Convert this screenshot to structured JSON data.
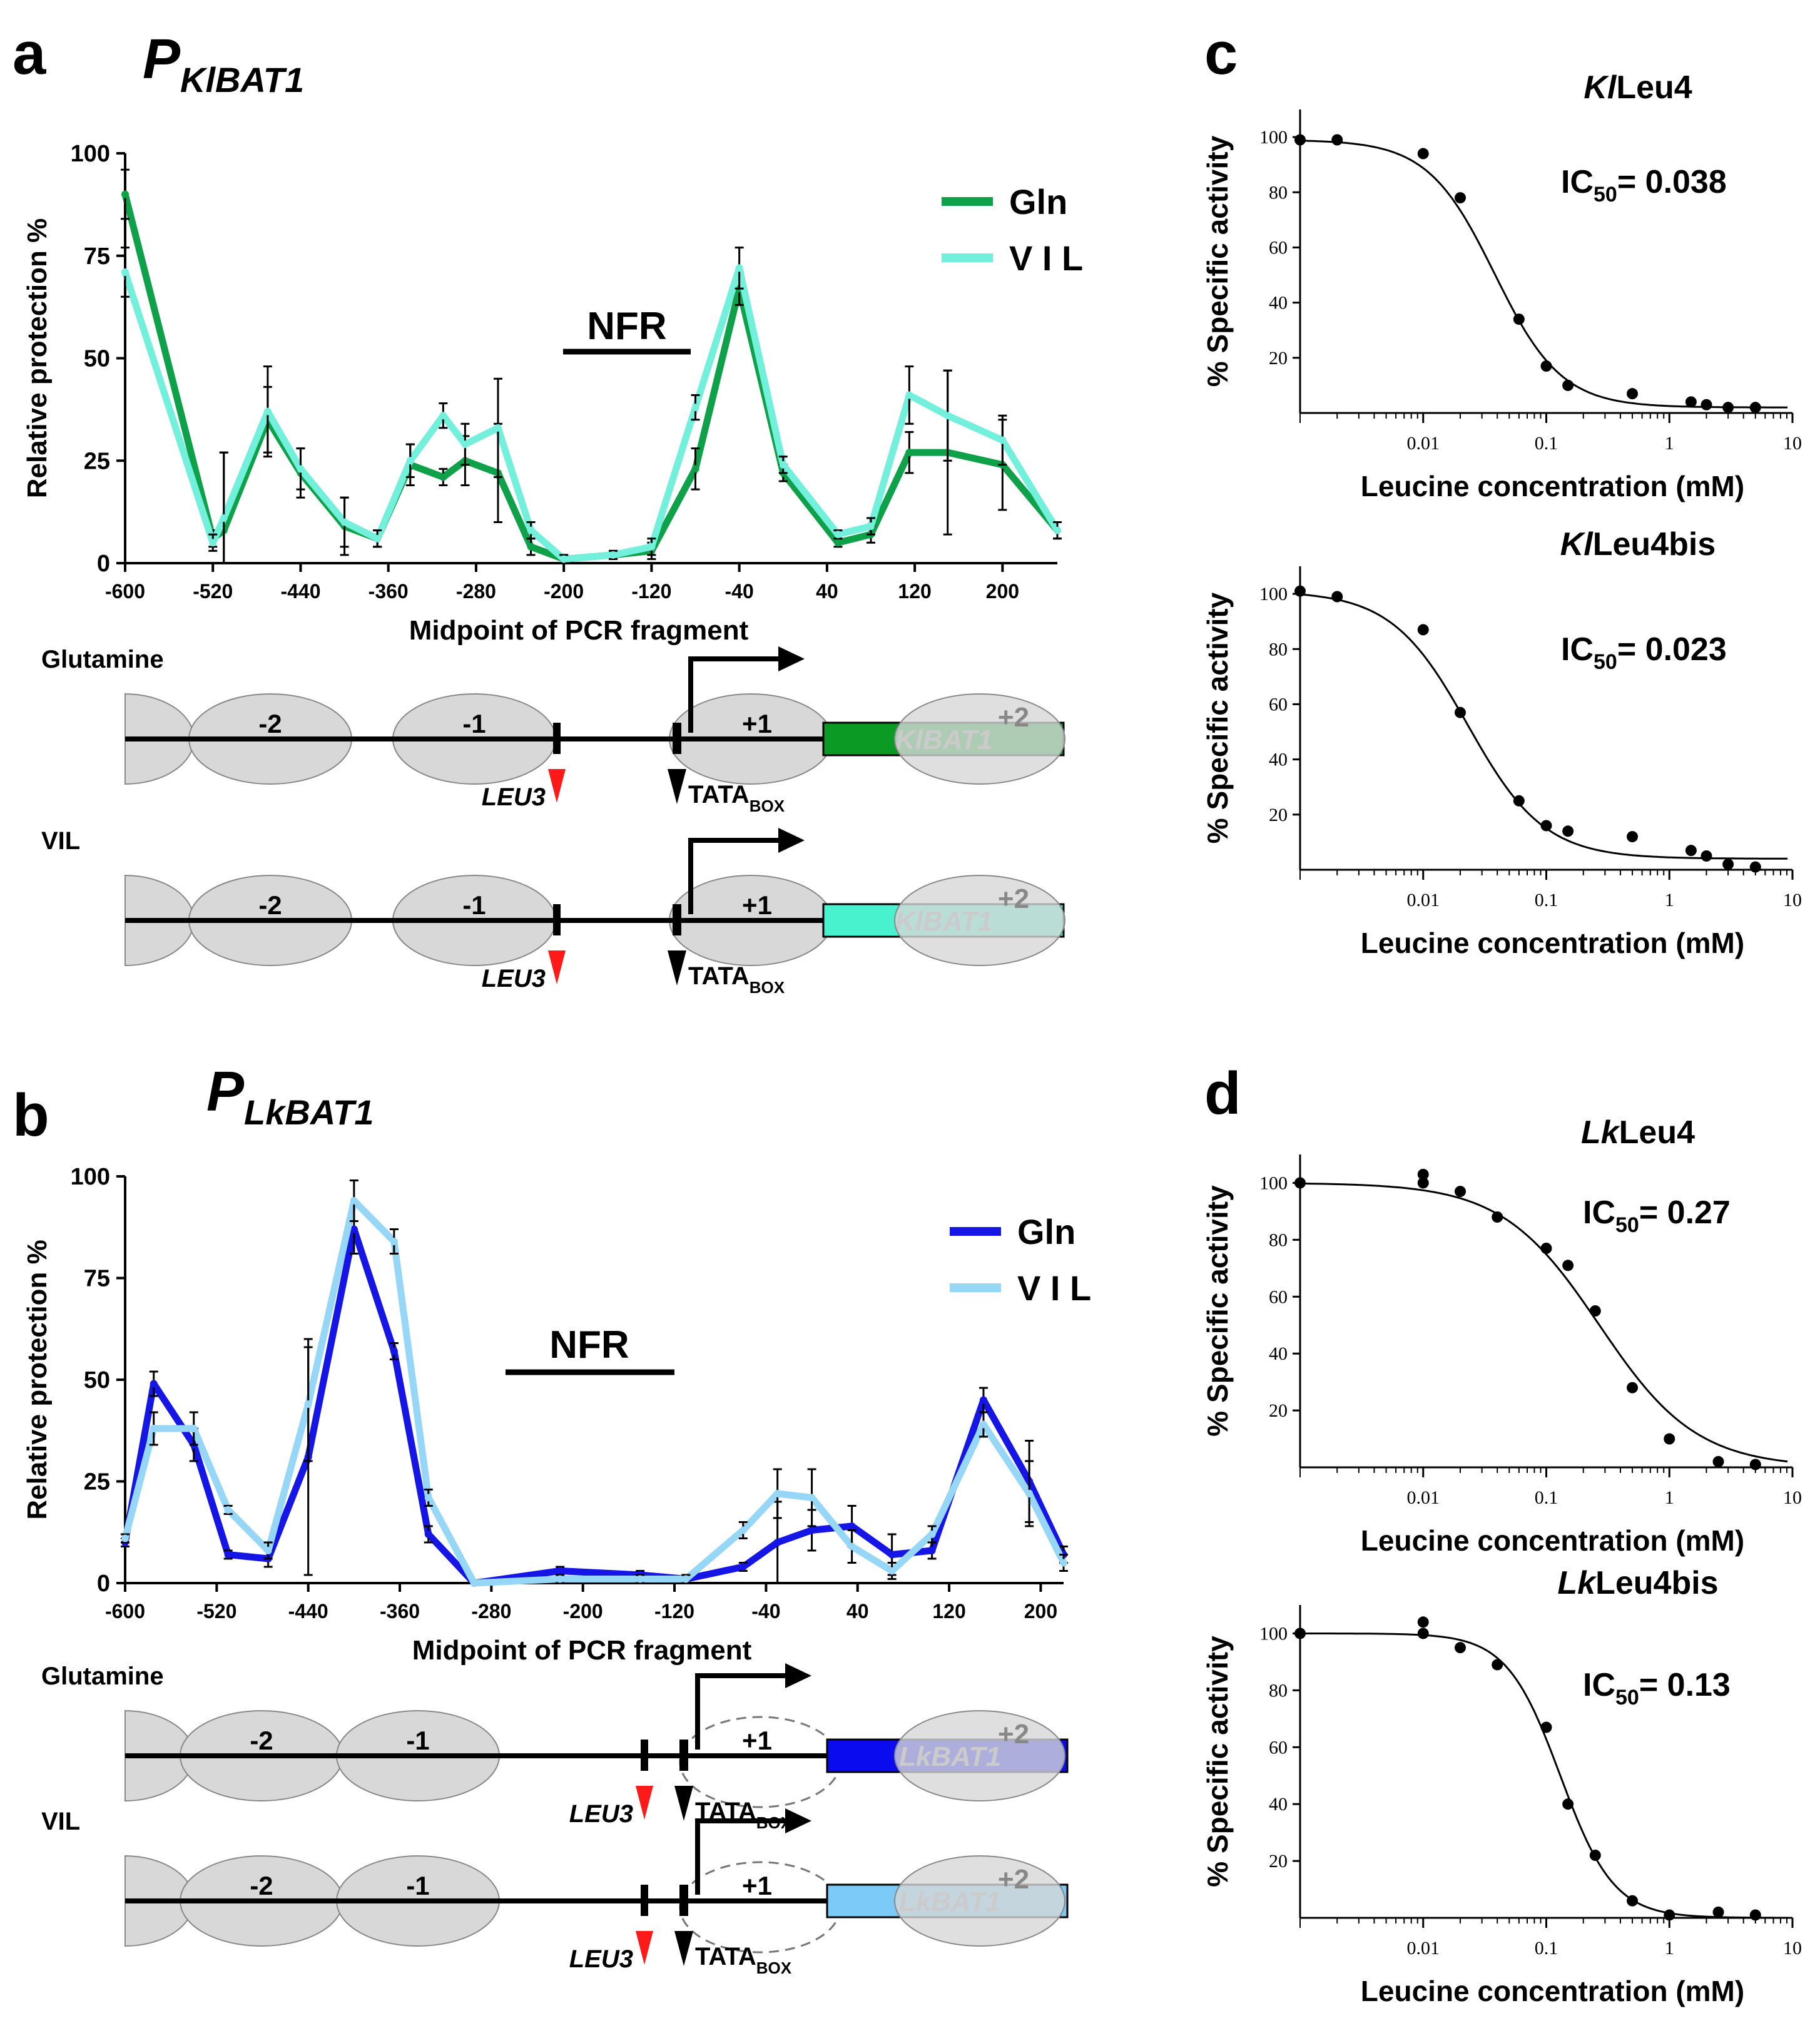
{
  "panel_letters": {
    "a": "a",
    "b": "b",
    "c": "c",
    "d": "d"
  },
  "colors": {
    "kl_gln": "#0ea14a",
    "kl_vil": "#72f0dc",
    "lk_gln": "#1515e6",
    "lk_vil": "#96d6f7",
    "kl_gene_gln": "#0b9a23",
    "kl_gene_vil": "#49f2cf",
    "lk_gene_gln": "#0b0bef",
    "lk_gene_vil": "#7ccaf7",
    "leu3_marker": "#ff1a1a",
    "nucleosome": "#d8d8d8"
  },
  "panel_a": {
    "title_main": "P",
    "title_sub": "KlBAT1",
    "nfr_label": "NFR",
    "diagram": {
      "rows": [
        {
          "condition": "Glutamine",
          "gene_label": "KlBAT1",
          "color_key": "kl_gene_gln"
        },
        {
          "condition": "VIL",
          "gene_label": "KlBAT1",
          "color_key": "kl_gene_vil"
        }
      ],
      "nucleosomes": [
        "-2",
        "-1",
        "+1",
        "+2"
      ],
      "leu3": "LEU3",
      "tata": "TATA",
      "tata_sub": "BOX"
    }
  },
  "panel_b": {
    "title_main": "P",
    "title_sub": "LkBAT1",
    "nfr_label": "NFR",
    "diagram": {
      "rows": [
        {
          "condition": "Glutamine",
          "gene_label": "LkBAT1",
          "color_key": "lk_gene_gln"
        },
        {
          "condition": "VIL",
          "gene_label": "LkBAT1",
          "color_key": "lk_gene_vil"
        }
      ],
      "nucleosomes": [
        "-2",
        "-1",
        "+1",
        "+2"
      ],
      "leu3": "LEU3",
      "tata": "TATA",
      "tata_sub": "BOX"
    }
  },
  "chart_data": [
    {
      "id": "a",
      "type": "line",
      "title": "",
      "xlabel": "Midpoint of PCR fragment",
      "ylabel": "Relative protection %",
      "xlim": [
        -600,
        250
      ],
      "ylim": [
        0,
        100
      ],
      "xticks": [
        -600,
        -520,
        -440,
        -360,
        -280,
        -200,
        -120,
        -40,
        40,
        120,
        200
      ],
      "yticks": [
        0,
        25,
        50,
        75,
        100
      ],
      "legend_position": "top-right",
      "grid": false,
      "series": [
        {
          "name": "Gln",
          "color_key": "kl_gln",
          "x": [
            -600,
            -520,
            -510,
            -470,
            -440,
            -400,
            -370,
            -340,
            -310,
            -290,
            -260,
            -230,
            -200,
            -155,
            -120,
            -80,
            -40,
            0,
            50,
            80,
            115,
            150,
            200,
            250
          ],
          "y": [
            90,
            6,
            8,
            35,
            22,
            9,
            6,
            24,
            21,
            25,
            22,
            4,
            1,
            2,
            3,
            23,
            67,
            22,
            5,
            7,
            27,
            27,
            24,
            8
          ],
          "err": [
            6,
            2,
            19,
            8,
            6,
            7,
            2,
            5,
            2,
            6,
            12,
            2,
            1,
            1,
            2,
            5,
            4,
            2,
            1,
            2,
            5,
            20,
            11,
            2
          ]
        },
        {
          "name": "V I L",
          "color_key": "kl_vil",
          "x": [
            -600,
            -520,
            -510,
            -470,
            -440,
            -400,
            -370,
            -340,
            -310,
            -290,
            -260,
            -230,
            -200,
            -155,
            -120,
            -80,
            -40,
            0,
            50,
            80,
            115,
            150,
            200,
            250
          ],
          "y": [
            71,
            5,
            11,
            37,
            23,
            10,
            6,
            25,
            36,
            29,
            33,
            8,
            1,
            2,
            4,
            38,
            72,
            24,
            7,
            9,
            41,
            36,
            30,
            8
          ],
          "err": [
            6,
            2,
            16,
            11,
            5,
            6,
            2,
            4,
            3,
            5,
            12,
            2,
            1,
            1,
            2,
            3,
            5,
            2,
            1,
            2,
            7,
            11,
            6,
            2
          ]
        }
      ]
    },
    {
      "id": "b",
      "type": "line",
      "title": "",
      "xlabel": "Midpoint of PCR fragment",
      "ylabel": "Relative protection %",
      "xlim": [
        -600,
        220
      ],
      "ylim": [
        0,
        100
      ],
      "xticks": [
        -600,
        -520,
        -440,
        -360,
        -280,
        -200,
        -120,
        -40,
        40,
        120,
        200
      ],
      "yticks": [
        0,
        25,
        50,
        75,
        100
      ],
      "legend_position": "top-right",
      "grid": false,
      "series": [
        {
          "name": "Gln",
          "color_key": "lk_gln",
          "x": [
            -600,
            -575,
            -540,
            -510,
            -475,
            -440,
            -400,
            -365,
            -335,
            -295,
            -220,
            -150,
            -110,
            -60,
            -30,
            0,
            35,
            70,
            105,
            150,
            190,
            220
          ],
          "y": [
            10,
            49,
            34,
            7,
            6,
            31,
            87,
            57,
            12,
            0,
            3,
            2,
            1,
            4,
            10,
            13,
            14,
            7,
            8,
            45,
            25,
            7
          ],
          "err": [
            1,
            3,
            4,
            1,
            2,
            29,
            6,
            2,
            2,
            0,
            1,
            1,
            1,
            1,
            10,
            5,
            5,
            5,
            2,
            3,
            10,
            2
          ]
        },
        {
          "name": "V I L",
          "color_key": "lk_vil",
          "x": [
            -600,
            -575,
            -540,
            -510,
            -475,
            -440,
            -400,
            -365,
            -335,
            -295,
            -220,
            -150,
            -110,
            -60,
            -30,
            0,
            35,
            70,
            105,
            150,
            190,
            220
          ],
          "y": [
            11,
            38,
            38,
            18,
            8,
            44,
            94,
            84,
            21,
            0,
            1,
            1,
            1,
            13,
            22,
            21,
            9,
            3,
            12,
            39,
            22,
            5
          ],
          "err": [
            1,
            4,
            4,
            1,
            2,
            14,
            5,
            3,
            2,
            0,
            1,
            1,
            1,
            2,
            6,
            7,
            4,
            2,
            2,
            3,
            8,
            2
          ]
        }
      ]
    },
    {
      "id": "c1",
      "type": "scatter",
      "title": "KlLeu4",
      "title_italic": "Kl",
      "title_rest": "Leu4",
      "ic50_label": "IC",
      "ic50_sub": "50",
      "ic50_value": "= 0.038",
      "ic50": 0.038,
      "hill": 1.6,
      "top": 99,
      "bottom": 2,
      "xlabel": "Leucine concentration (mM)",
      "ylabel": "% Specific activity",
      "x_scale": "log",
      "xlim": [
        0.001,
        10
      ],
      "ylim": [
        0,
        110
      ],
      "xtick_labels": [
        "0.01",
        "0.1",
        "1",
        "10"
      ],
      "ytick_labels": [
        "20",
        "40",
        "60",
        "80",
        "100"
      ],
      "x": [
        0.001,
        0.002,
        0.01,
        0.02,
        0.06,
        0.1,
        0.15,
        0.5,
        1.5,
        2,
        3,
        5
      ],
      "y": [
        99,
        99,
        94,
        78,
        34,
        17,
        10,
        7,
        4,
        3,
        2,
        2
      ]
    },
    {
      "id": "c2",
      "type": "scatter",
      "title": "KlLeu4bis",
      "title_italic": "Kl",
      "title_rest": "Leu4bis",
      "ic50_label": "IC",
      "ic50_sub": "50",
      "ic50_value": "= 0.023",
      "ic50": 0.023,
      "hill": 1.4,
      "top": 101,
      "bottom": 4,
      "xlabel": "Leucine concentration (mM)",
      "ylabel": "% Specific activity",
      "x_scale": "log",
      "xlim": [
        0.001,
        10
      ],
      "ylim": [
        0,
        110
      ],
      "xtick_labels": [
        "0.01",
        "0.1",
        "1",
        "10"
      ],
      "ytick_labels": [
        "20",
        "40",
        "60",
        "80",
        "100"
      ],
      "x": [
        0.001,
        0.002,
        0.01,
        0.02,
        0.06,
        0.1,
        0.15,
        0.5,
        1.5,
        2,
        3,
        5
      ],
      "y": [
        101,
        99,
        87,
        57,
        25,
        16,
        14,
        12,
        7,
        5,
        2,
        1
      ]
    },
    {
      "id": "d1",
      "type": "scatter",
      "title": "LkLeu4",
      "title_italic": "Lk",
      "title_rest": "Leu4",
      "ic50_label": "IC",
      "ic50_sub": "50",
      "ic50_value": "= 0.27",
      "ic50": 0.27,
      "hill": 1.1,
      "top": 100,
      "bottom": 0,
      "xlabel": "Leucine concentration (mM)",
      "ylabel": "% Specific activity",
      "x_scale": "log",
      "xlim": [
        0.001,
        10
      ],
      "ylim": [
        0,
        110
      ],
      "xtick_labels": [
        "0.01",
        "0.1",
        "1",
        "10"
      ],
      "ytick_labels": [
        "20",
        "40",
        "60",
        "80",
        "100"
      ],
      "x": [
        0.001,
        0.01,
        0.01,
        0.02,
        0.04,
        0.1,
        0.15,
        0.25,
        0.5,
        1,
        2.5,
        5
      ],
      "y": [
        100,
        100,
        103,
        97,
        88,
        77,
        71,
        55,
        28,
        10,
        2,
        1
      ]
    },
    {
      "id": "d2",
      "type": "scatter",
      "title": "LkLeu4bis",
      "title_italic": "Lk",
      "title_rest": "Leu4bis",
      "ic50_label": "IC",
      "ic50_sub": "50",
      "ic50_value": "= 0.13",
      "ic50": 0.13,
      "hill": 2.0,
      "top": 100,
      "bottom": 0,
      "xlabel": "Leucine concentration (mM)",
      "ylabel": "% Specific activity",
      "x_scale": "log",
      "xlim": [
        0.001,
        10
      ],
      "ylim": [
        0,
        110
      ],
      "xtick_labels": [
        "0.01",
        "0.1",
        "1",
        "10"
      ],
      "ytick_labels": [
        "20",
        "40",
        "60",
        "80",
        "100"
      ],
      "x": [
        0.001,
        0.01,
        0.01,
        0.02,
        0.04,
        0.1,
        0.15,
        0.25,
        0.5,
        1,
        2.5,
        5
      ],
      "y": [
        100,
        100,
        104,
        95,
        89,
        67,
        40,
        22,
        6,
        1,
        2,
        1
      ]
    }
  ]
}
